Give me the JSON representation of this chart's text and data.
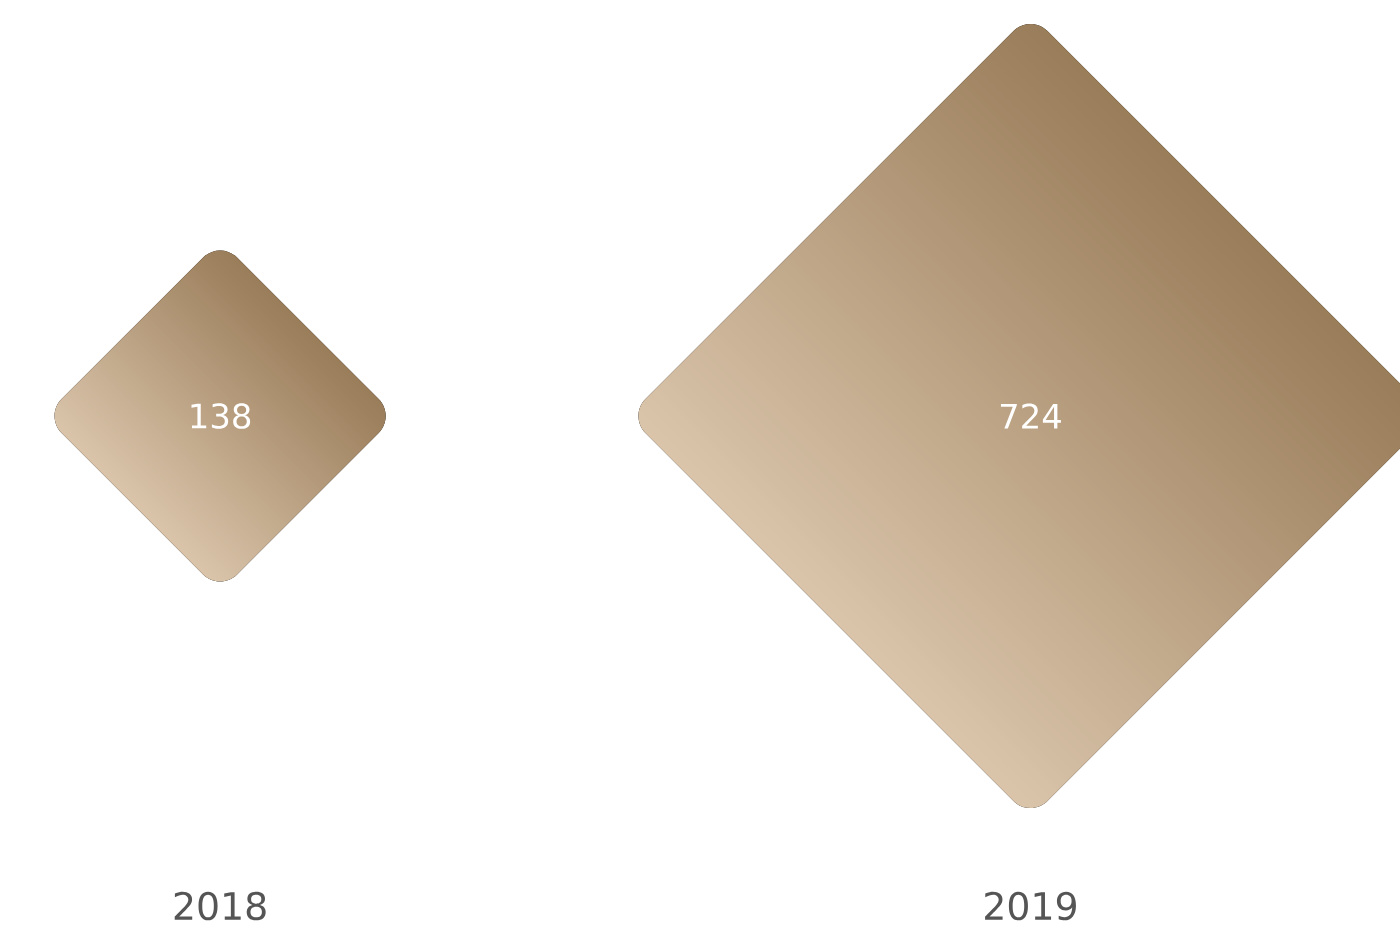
{
  "chart_data": {
    "type": "other",
    "categories": [
      "2018",
      "2019"
    ],
    "values": [
      138,
      724
    ],
    "color": "#c99d68",
    "data_labels": true
  }
}
